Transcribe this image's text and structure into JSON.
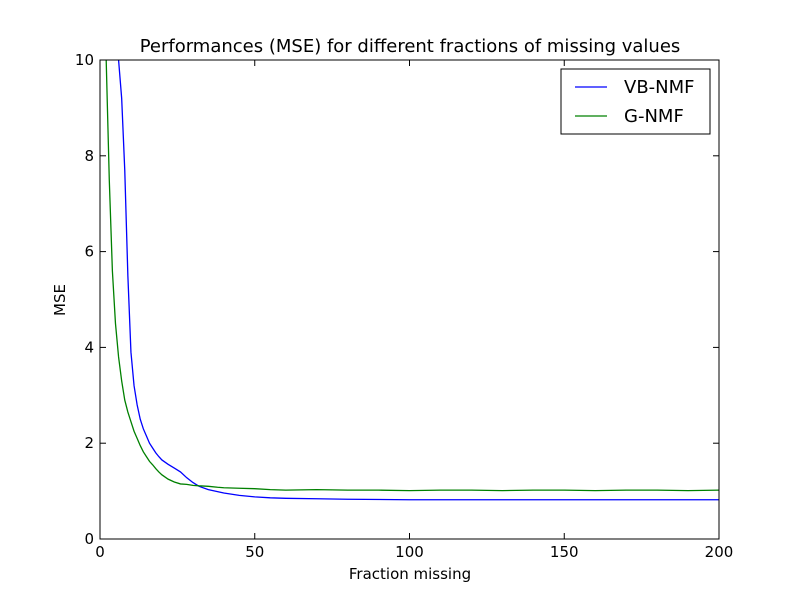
{
  "chart_data": {
    "type": "line",
    "title": "Performances (MSE) for different fractions of missing values",
    "xlabel": "Fraction missing",
    "ylabel": "MSE",
    "xlim": [
      0,
      200
    ],
    "ylim": [
      0,
      10
    ],
    "xticks": [
      0,
      50,
      100,
      150,
      200
    ],
    "yticks": [
      0,
      2,
      4,
      6,
      8,
      10
    ],
    "grid": false,
    "legend_position": "top-right",
    "series": [
      {
        "name": "VB-NMF",
        "color": "#0000ff",
        "points": [
          [
            6,
            10.0
          ],
          [
            7,
            9.2
          ],
          [
            8,
            7.7
          ],
          [
            9,
            5.5
          ],
          [
            10,
            3.9
          ],
          [
            11,
            3.2
          ],
          [
            12,
            2.8
          ],
          [
            13,
            2.5
          ],
          [
            14,
            2.3
          ],
          [
            15,
            2.15
          ],
          [
            16,
            2.0
          ],
          [
            17,
            1.9
          ],
          [
            18,
            1.8
          ],
          [
            19,
            1.72
          ],
          [
            20,
            1.65
          ],
          [
            22,
            1.56
          ],
          [
            24,
            1.48
          ],
          [
            26,
            1.4
          ],
          [
            28,
            1.28
          ],
          [
            30,
            1.18
          ],
          [
            32,
            1.1
          ],
          [
            35,
            1.03
          ],
          [
            40,
            0.96
          ],
          [
            45,
            0.91
          ],
          [
            50,
            0.88
          ],
          [
            55,
            0.86
          ],
          [
            60,
            0.85
          ],
          [
            70,
            0.84
          ],
          [
            80,
            0.83
          ],
          [
            100,
            0.82
          ],
          [
            120,
            0.82
          ],
          [
            150,
            0.82
          ],
          [
            180,
            0.82
          ],
          [
            200,
            0.82
          ]
        ]
      },
      {
        "name": "G-NMF",
        "color": "#008000",
        "points": [
          [
            2,
            10.0
          ],
          [
            3,
            7.5
          ],
          [
            4,
            5.6
          ],
          [
            5,
            4.5
          ],
          [
            6,
            3.8
          ],
          [
            7,
            3.3
          ],
          [
            8,
            2.9
          ],
          [
            9,
            2.65
          ],
          [
            10,
            2.45
          ],
          [
            11,
            2.25
          ],
          [
            12,
            2.1
          ],
          [
            13,
            1.95
          ],
          [
            14,
            1.82
          ],
          [
            15,
            1.72
          ],
          [
            16,
            1.62
          ],
          [
            17,
            1.55
          ],
          [
            18,
            1.47
          ],
          [
            19,
            1.4
          ],
          [
            20,
            1.34
          ],
          [
            22,
            1.25
          ],
          [
            24,
            1.19
          ],
          [
            26,
            1.15
          ],
          [
            28,
            1.14
          ],
          [
            30,
            1.12
          ],
          [
            32,
            1.11
          ],
          [
            35,
            1.1
          ],
          [
            38,
            1.08
          ],
          [
            40,
            1.07
          ],
          [
            45,
            1.06
          ],
          [
            50,
            1.05
          ],
          [
            55,
            1.03
          ],
          [
            60,
            1.02
          ],
          [
            70,
            1.03
          ],
          [
            80,
            1.02
          ],
          [
            90,
            1.02
          ],
          [
            100,
            1.01
          ],
          [
            110,
            1.02
          ],
          [
            120,
            1.02
          ],
          [
            130,
            1.01
          ],
          [
            140,
            1.02
          ],
          [
            150,
            1.02
          ],
          [
            160,
            1.01
          ],
          [
            170,
            1.02
          ],
          [
            180,
            1.02
          ],
          [
            190,
            1.01
          ],
          [
            200,
            1.02
          ]
        ]
      }
    ]
  }
}
